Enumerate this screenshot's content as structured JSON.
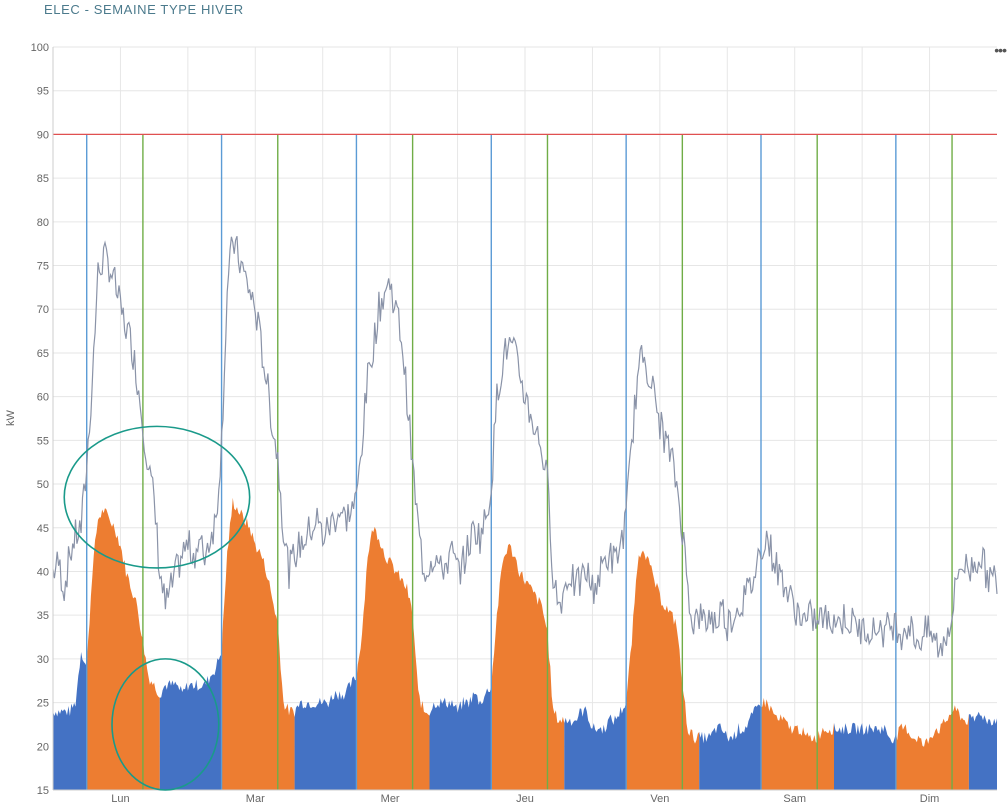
{
  "title": "ELEC - SEMAINE TYPE HIVER",
  "menu_icon": "ellipsis-icon",
  "menu_symbol": "•••",
  "chart_data": {
    "type": "area",
    "title": "ELEC - SEMAINE TYPE HIVER",
    "ylabel": "kW",
    "xlabel": "",
    "ylim": [
      15,
      100
    ],
    "yticks": [
      15,
      20,
      25,
      30,
      35,
      40,
      45,
      50,
      55,
      60,
      65,
      70,
      75,
      80,
      85,
      90,
      95,
      100
    ],
    "days": [
      "Lun",
      "Mar",
      "Mer",
      "Jeu",
      "Ven",
      "Sam",
      "Dim"
    ],
    "grid": true,
    "colors": {
      "base_area": "#4472c4",
      "peak_area": "#ed7d31",
      "gray_line": "#8a93a8",
      "limit_line": "#e05050",
      "blue_marker": "#5b9bd5",
      "green_marker": "#70ad47",
      "annotation": "#1a9a8a"
    },
    "limit_line_kw": 90,
    "marker_lines_hours": {
      "blue": [
        6,
        30,
        54,
        78,
        102,
        126,
        150
      ],
      "green": [
        16,
        40,
        64,
        88,
        112,
        136,
        160
      ]
    },
    "orange_area_hours": [
      [
        6,
        19
      ],
      [
        30,
        43
      ],
      [
        54,
        67
      ],
      [
        78,
        91
      ],
      [
        102,
        115
      ],
      [
        126,
        139
      ],
      [
        150,
        163
      ]
    ],
    "gray_series_hourly": [
      40,
      41,
      38,
      42,
      44,
      45,
      52,
      62,
      74,
      76,
      75,
      73,
      70,
      68,
      66,
      62,
      57,
      52,
      48,
      40,
      36,
      38,
      40,
      42,
      43,
      42,
      43,
      42,
      44,
      46,
      55,
      72,
      78,
      76,
      74,
      72,
      70,
      66,
      62,
      57,
      53,
      45,
      40,
      42,
      43,
      44,
      45,
      46,
      44,
      45,
      46,
      47,
      46,
      47,
      48,
      55,
      62,
      66,
      70,
      72,
      73,
      70,
      67,
      60,
      52,
      45,
      40,
      41,
      42,
      40,
      41,
      42,
      40,
      41,
      43,
      45,
      44,
      46,
      50,
      60,
      64,
      66,
      65,
      63,
      60,
      58,
      56,
      54,
      50,
      40,
      36,
      38,
      40,
      38,
      39,
      40,
      38,
      39,
      41,
      42,
      41,
      43,
      46,
      55,
      62,
      65,
      63,
      60,
      57,
      55,
      53,
      50,
      45,
      38,
      34,
      35,
      34,
      35,
      34,
      36,
      34,
      35,
      36,
      37,
      38,
      40,
      43,
      44,
      42,
      40,
      39,
      37,
      36,
      35,
      34,
      35,
      34,
      35,
      34,
      35,
      34,
      35,
      34,
      34,
      33,
      34,
      33,
      34,
      33,
      34,
      34,
      33,
      34,
      33,
      32,
      33,
      33,
      32,
      31,
      33,
      35,
      40,
      41,
      40,
      41,
      42,
      40,
      39
    ],
    "fill_series_hourly": [
      24,
      24,
      24,
      24,
      25,
      31,
      29,
      40,
      46,
      47,
      46,
      45,
      43,
      40,
      38,
      36,
      32,
      28,
      27,
      26,
      27,
      27,
      27,
      26,
      27,
      27,
      27,
      27,
      28,
      29,
      31,
      42,
      48,
      47,
      46,
      45,
      43,
      42,
      40,
      37,
      34,
      25,
      24,
      24,
      25,
      25,
      25,
      25,
      25,
      25,
      26,
      26,
      26,
      27,
      28,
      33,
      42,
      45,
      44,
      42,
      41,
      40,
      39,
      38,
      35,
      26,
      24,
      24,
      25,
      25,
      25,
      25,
      24,
      25,
      25,
      26,
      25,
      26,
      27,
      35,
      41,
      43,
      42,
      40,
      39,
      38,
      37,
      36,
      33,
      24,
      23,
      23,
      23,
      23,
      24,
      24,
      22,
      22,
      22,
      23,
      23,
      24,
      25,
      32,
      41,
      43,
      41,
      39,
      37,
      36,
      35,
      34,
      27,
      22,
      21,
      21,
      21,
      21,
      22,
      22,
      21,
      21,
      22,
      22,
      23,
      24,
      25,
      25,
      24,
      23,
      23,
      22,
      22,
      22,
      21,
      21,
      21,
      22,
      22,
      22,
      22,
      22,
      22,
      22,
      22,
      22,
      22,
      22,
      22,
      21,
      21,
      22,
      22,
      21,
      21,
      20,
      21,
      22,
      22,
      23,
      24,
      24,
      23,
      23,
      23,
      24,
      23,
      23
    ],
    "annotations": [
      {
        "shape": "ellipse",
        "cx_hour": 18.5,
        "cy_kw": 48.5,
        "rx_hours": 16.5,
        "ry_kw": 8.1
      },
      {
        "shape": "ellipse",
        "cx_hour": 20,
        "cy_kw": 22.5,
        "rx_hours": 9.5,
        "ry_kw": 7.5
      }
    ]
  }
}
